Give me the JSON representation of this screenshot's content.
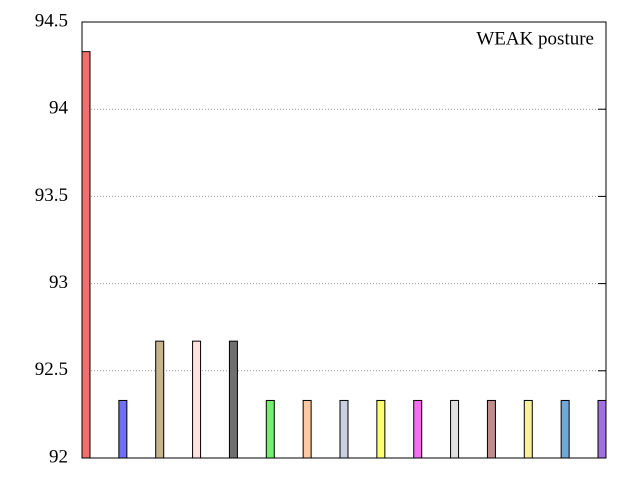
{
  "chart_data": {
    "type": "bar",
    "annotation": "WEAK posture",
    "categories": [
      null,
      null,
      null,
      null,
      null,
      null,
      null,
      null,
      null,
      null,
      null,
      null,
      null,
      null,
      null
    ],
    "values": [
      94.33,
      92.33,
      92.67,
      92.67,
      92.67,
      92.33,
      92.33,
      92.33,
      92.33,
      92.33,
      92.33,
      92.33,
      92.33,
      92.33,
      92.33
    ],
    "colors": [
      "#f07070",
      "#7070f0",
      "#c8b48c",
      "#ffe0e0",
      "#707070",
      "#70f070",
      "#ffc8a0",
      "#c8d0e0",
      "#ffff70",
      "#f070f0",
      "#e0e0e0",
      "#c08c8c",
      "#f8f0a0",
      "#70a8d8",
      "#a070e0"
    ],
    "ylim": [
      92,
      94.5
    ],
    "yticks": [
      92,
      92.5,
      93,
      93.5,
      94,
      94.5
    ],
    "grid": true
  }
}
